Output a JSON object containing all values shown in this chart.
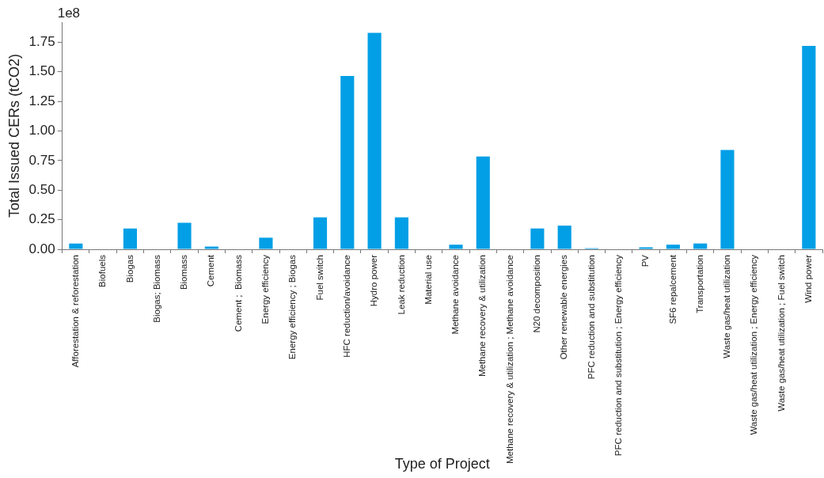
{
  "chart_data": {
    "type": "bar",
    "xlabel": "Type of Project",
    "ylabel": "Total Issued CERs (tCO2)",
    "annotations": [
      "1e8"
    ],
    "categories": [
      "Afforestation & reforestation",
      "Biofuels",
      "Biogas",
      "Biogas; Biomass",
      "Biomass",
      "Cement",
      "Cement ;  Biomass",
      "Energy efficiency",
      "Energy efficiency ; Biogas",
      "Fuel switch",
      "HFC reduction/avoidance",
      "Hydro power",
      "Leak reduction",
      "Material use",
      "Methane avoidance",
      "Methane recovery & utilization",
      "Methane recovery & utilization ; Methane avoidance",
      "N20 decomposition",
      "Other renewable energies",
      "PFC reduction and substitution",
      "PFC reduction and substitution ; Energy efficiency",
      "PV",
      "SF6 repalcement",
      "Transportation",
      "Waste gas/heat utilization",
      "Waste gas/heat utilization ; Energy efficiency",
      "Waste gas/heat utilization ; Fuel switch",
      "Wind power"
    ],
    "values": [
      0.048,
      0,
      0.175,
      0,
      0.224,
      0.023,
      0,
      0.098,
      0,
      0.27,
      1.465,
      1.83,
      0.27,
      0,
      0.039,
      0.785,
      0,
      0.176,
      0.2,
      0.009,
      0,
      0.017,
      0.039,
      0.049,
      0.839,
      0,
      0,
      1.72
    ],
    "color": "#039fe6",
    "ylim": [
      0,
      1.92
    ],
    "yticks": [
      {
        "value": 0,
        "label": "0.00"
      },
      {
        "value": 0.25,
        "label": "0.25"
      },
      {
        "value": 0.5,
        "label": "0.50"
      },
      {
        "value": 0.75,
        "label": "0.75"
      },
      {
        "value": 1,
        "label": "1.00"
      },
      {
        "value": 1.25,
        "label": "1.25"
      },
      {
        "value": 1.5,
        "label": "1.50"
      },
      {
        "value": 1.75,
        "label": "1.75"
      }
    ],
    "grid": false,
    "legend": false
  }
}
